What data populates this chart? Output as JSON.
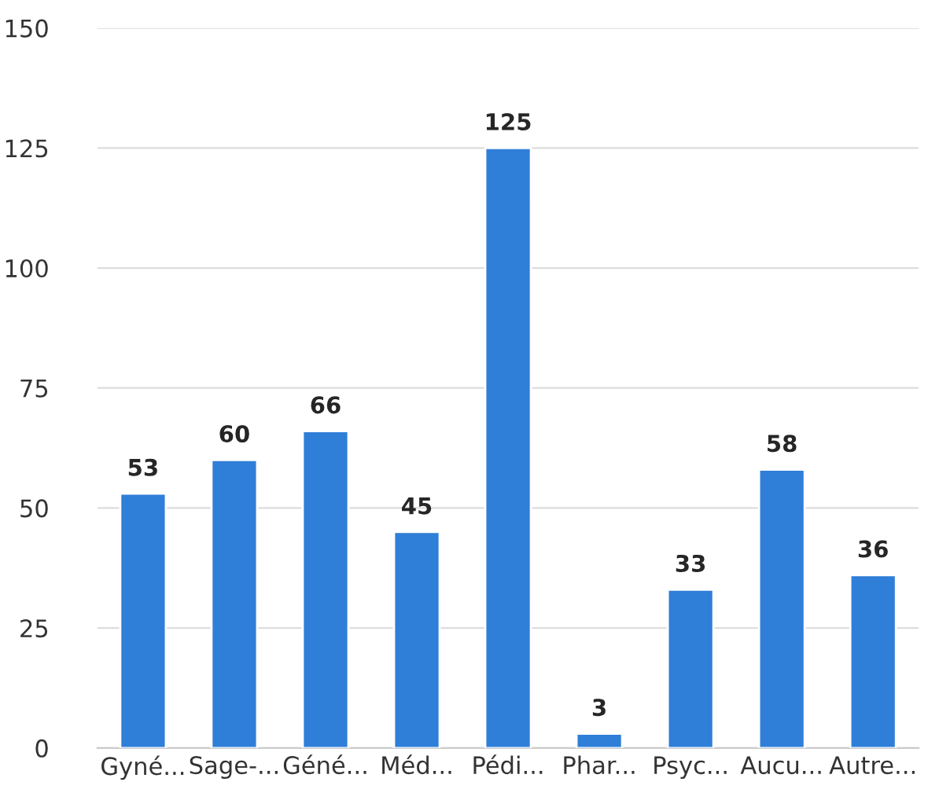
{
  "chart_data": {
    "type": "bar",
    "categories": [
      "Gyné...",
      "Sage-...",
      "Géné...",
      "Méd...",
      "Pédi...",
      "Phar...",
      "Psyc...",
      "Aucu...",
      "Autre..."
    ],
    "values": [
      53,
      60,
      66,
      45,
      125,
      3,
      33,
      58,
      36
    ],
    "color": "#2f7ed8",
    "ylim": [
      0,
      150
    ],
    "yticks": [
      0,
      25,
      50,
      75,
      100,
      125,
      150
    ],
    "grid": "y",
    "data_labels": true
  }
}
